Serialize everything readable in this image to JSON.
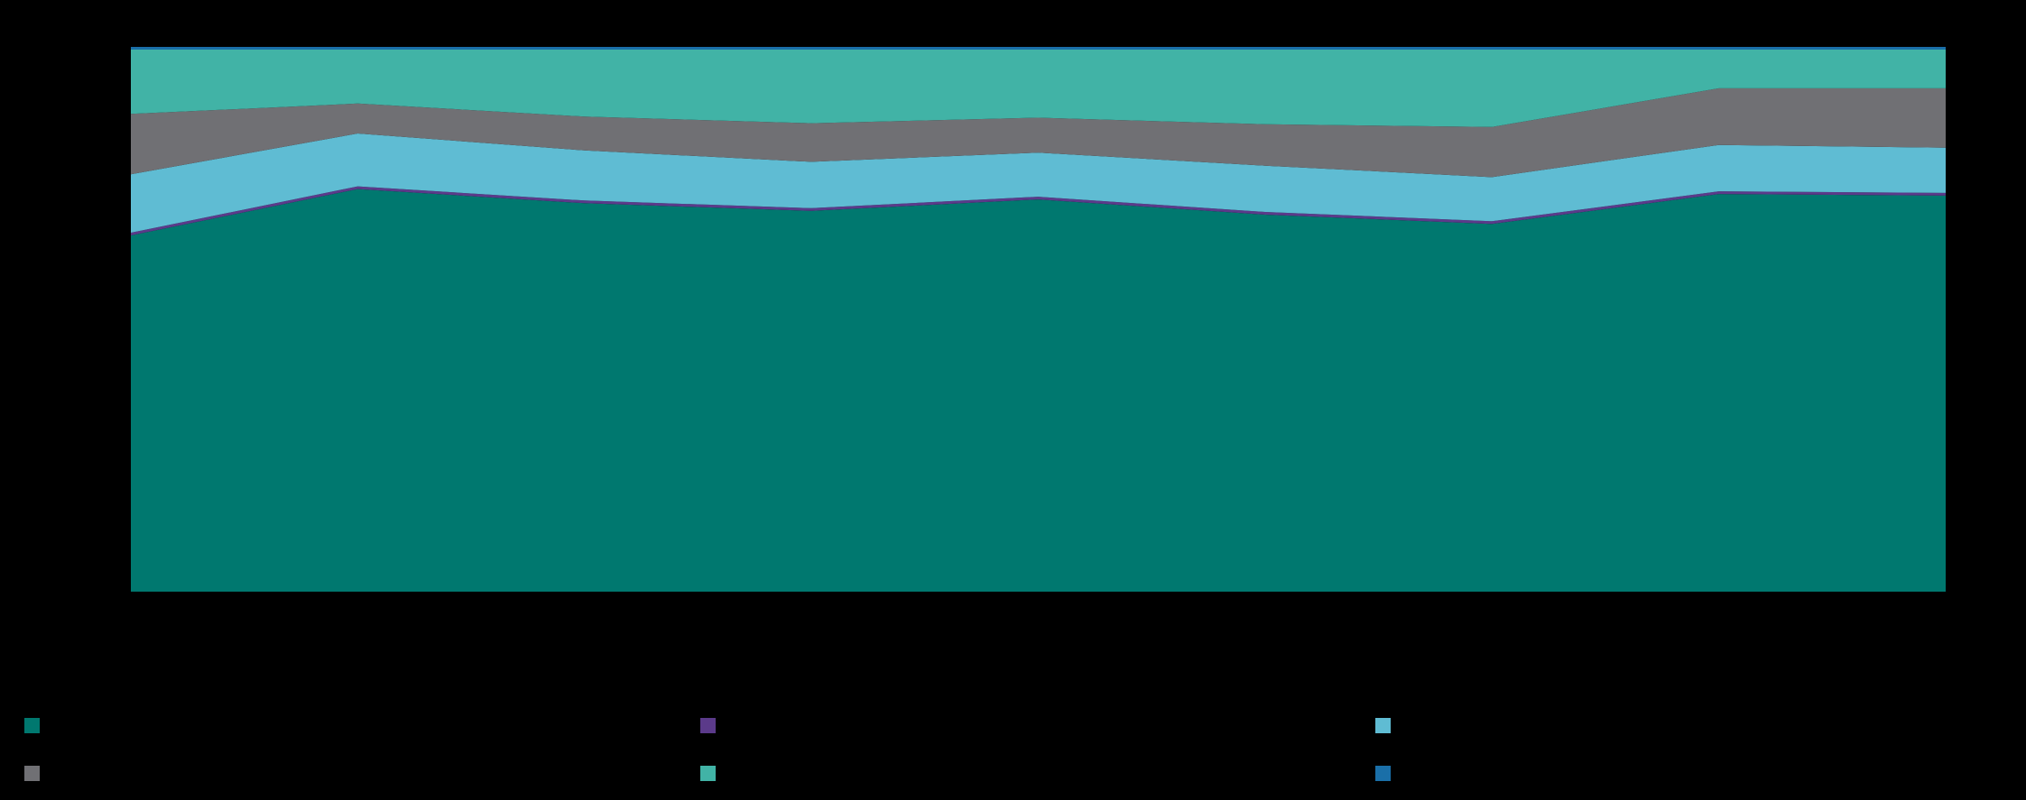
{
  "chart_data": {
    "type": "stacked-area",
    "categories": [
      null,
      null,
      null,
      null,
      null,
      null,
      null,
      null,
      null
    ],
    "ylim": [
      0,
      100
    ],
    "series": [
      {
        "color": "#00786f",
        "values": [
          65.4,
          73.9,
          71.3,
          69.9,
          72.0,
          69.2,
          67.5,
          73.0,
          72.7
        ]
      },
      {
        "color": "#5b3a8a",
        "values": [
          0.5,
          0.5,
          0.5,
          0.5,
          0.5,
          0.5,
          0.5,
          0.5,
          0.5
        ]
      },
      {
        "color": "#5fbcd3",
        "values": [
          10.7,
          9.7,
          9.2,
          8.5,
          8.1,
          8.5,
          8.1,
          8.5,
          8.3
        ]
      },
      {
        "color": "#707074",
        "values": [
          11.1,
          5.5,
          6.2,
          7.1,
          6.4,
          7.6,
          9.2,
          10.4,
          10.9
        ]
      },
      {
        "color": "#41b3a6",
        "values": [
          11.8,
          9.9,
          12.3,
          13.5,
          12.5,
          13.7,
          14.2,
          7.1,
          7.1
        ]
      },
      {
        "color": "#1a6fa8",
        "values": [
          0.5,
          0.5,
          0.5,
          0.5,
          0.5,
          0.5,
          0.5,
          0.5,
          0.5
        ]
      }
    ]
  }
}
